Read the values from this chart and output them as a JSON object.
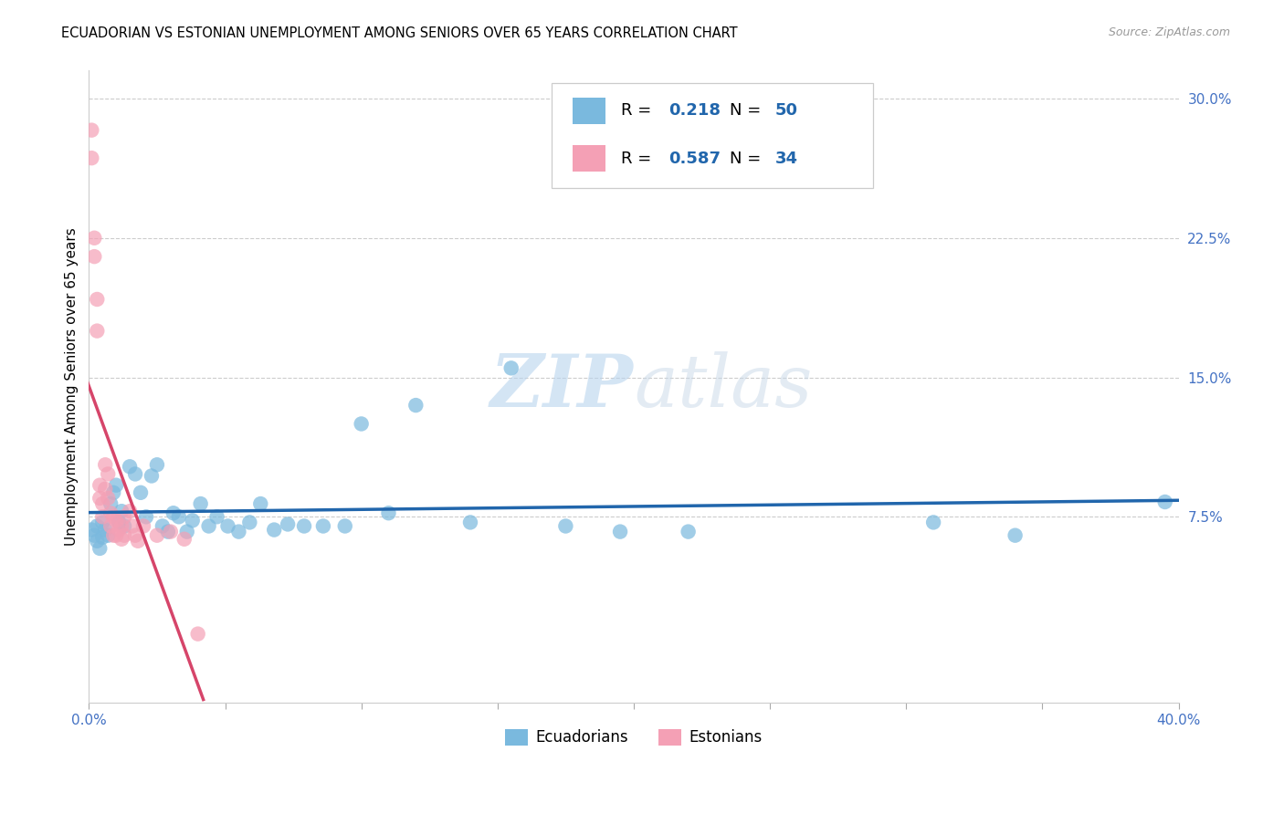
{
  "title": "ECUADORIAN VS ESTONIAN UNEMPLOYMENT AMONG SENIORS OVER 65 YEARS CORRELATION CHART",
  "source": "Source: ZipAtlas.com",
  "ylabel": "Unemployment Among Seniors over 65 years",
  "xlim": [
    0.0,
    0.4
  ],
  "ylim": [
    -0.025,
    0.315
  ],
  "xticks": [
    0.0,
    0.05,
    0.1,
    0.15,
    0.2,
    0.25,
    0.3,
    0.35,
    0.4
  ],
  "xtick_labels_show": [
    "0.0%",
    "",
    "",
    "",
    "",
    "",
    "",
    "",
    "40.0%"
  ],
  "yticks": [
    0.075,
    0.15,
    0.225,
    0.3
  ],
  "ytick_labels": [
    "7.5%",
    "15.0%",
    "22.5%",
    "30.0%"
  ],
  "blue_color": "#7ab9de",
  "pink_color": "#f4a0b5",
  "blue_line_color": "#2166ac",
  "pink_line_color": "#d6456a",
  "tick_color": "#4472c4",
  "R_blue": "0.218",
  "N_blue": "50",
  "R_pink": "0.587",
  "N_pink": "34",
  "watermark_zip": "ZIP",
  "watermark_atlas": "atlas",
  "legend_label_blue": "Ecuadorians",
  "legend_label_pink": "Estonians",
  "blue_x": [
    0.001,
    0.002,
    0.003,
    0.003,
    0.004,
    0.005,
    0.005,
    0.006,
    0.007,
    0.008,
    0.009,
    0.01,
    0.011,
    0.012,
    0.013,
    0.015,
    0.017,
    0.019,
    0.021,
    0.023,
    0.025,
    0.027,
    0.029,
    0.031,
    0.033,
    0.036,
    0.038,
    0.041,
    0.044,
    0.047,
    0.051,
    0.055,
    0.059,
    0.063,
    0.068,
    0.073,
    0.079,
    0.086,
    0.094,
    0.1,
    0.11,
    0.12,
    0.14,
    0.155,
    0.175,
    0.195,
    0.22,
    0.31,
    0.34,
    0.395
  ],
  "blue_y": [
    0.068,
    0.065,
    0.062,
    0.07,
    0.058,
    0.072,
    0.064,
    0.068,
    0.065,
    0.082,
    0.088,
    0.092,
    0.072,
    0.078,
    0.07,
    0.102,
    0.098,
    0.088,
    0.075,
    0.097,
    0.103,
    0.07,
    0.067,
    0.077,
    0.075,
    0.067,
    0.073,
    0.082,
    0.07,
    0.075,
    0.07,
    0.067,
    0.072,
    0.082,
    0.068,
    0.071,
    0.07,
    0.07,
    0.07,
    0.125,
    0.077,
    0.135,
    0.072,
    0.155,
    0.07,
    0.067,
    0.067,
    0.072,
    0.065,
    0.083
  ],
  "pink_x": [
    0.001,
    0.001,
    0.002,
    0.002,
    0.003,
    0.003,
    0.004,
    0.004,
    0.005,
    0.005,
    0.006,
    0.006,
    0.007,
    0.007,
    0.008,
    0.008,
    0.009,
    0.009,
    0.01,
    0.01,
    0.011,
    0.012,
    0.012,
    0.013,
    0.013,
    0.015,
    0.016,
    0.017,
    0.018,
    0.02,
    0.025,
    0.03,
    0.035,
    0.04
  ],
  "pink_y": [
    0.283,
    0.268,
    0.225,
    0.215,
    0.192,
    0.175,
    0.092,
    0.085,
    0.082,
    0.075,
    0.103,
    0.09,
    0.098,
    0.085,
    0.077,
    0.07,
    0.075,
    0.065,
    0.073,
    0.065,
    0.068,
    0.07,
    0.063,
    0.075,
    0.065,
    0.078,
    0.07,
    0.065,
    0.062,
    0.07,
    0.065,
    0.067,
    0.063,
    0.012
  ]
}
